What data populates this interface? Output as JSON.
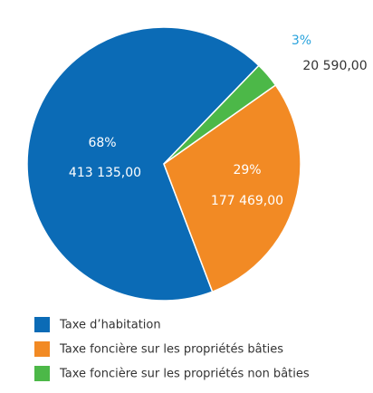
{
  "chart_data": {
    "type": "pie",
    "categories": [
      "Taxe d’habitation",
      "Taxe foncière sur les propriétés bâties",
      "Taxe foncière sur les propriétés non bâties"
    ],
    "values": [
      68,
      29,
      3
    ],
    "value_labels": [
      "68%",
      "29%",
      "3%"
    ],
    "amounts": [
      413135,
      177469,
      20590
    ],
    "amount_labels": [
      "413 135,00",
      "177 469,00",
      "20 590,00"
    ],
    "colors": [
      "#0b6bb6",
      "#f28a24",
      "#4cb848"
    ]
  }
}
